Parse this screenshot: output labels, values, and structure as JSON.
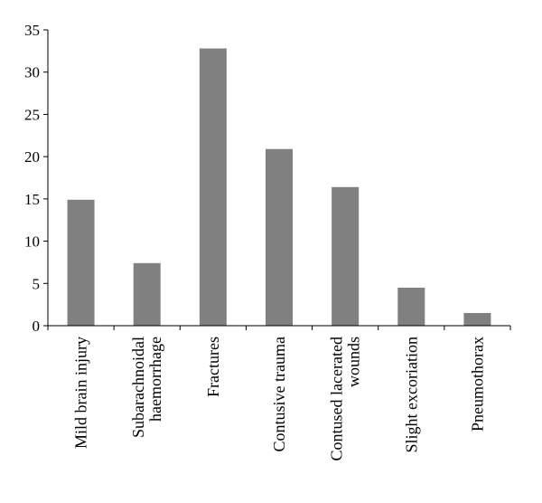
{
  "chart_data": {
    "type": "bar",
    "title": "",
    "xlabel": "",
    "ylabel": "",
    "ylim": [
      0,
      35
    ],
    "yticks": [
      0,
      5,
      10,
      15,
      20,
      25,
      30,
      35
    ],
    "grid": false,
    "legend": "none",
    "bar_color": "#808080",
    "categories": [
      [
        "Mild brain injury"
      ],
      [
        "Subarachnoidal",
        "haemorrhage"
      ],
      [
        "Fractures"
      ],
      [
        "Contusive trauma"
      ],
      [
        "Contused lacerated",
        "wounds"
      ],
      [
        "Slight excoriation"
      ],
      [
        "Pneumothorax"
      ]
    ],
    "values": [
      14.9,
      7.4,
      32.8,
      20.9,
      16.4,
      4.5,
      1.5
    ]
  }
}
